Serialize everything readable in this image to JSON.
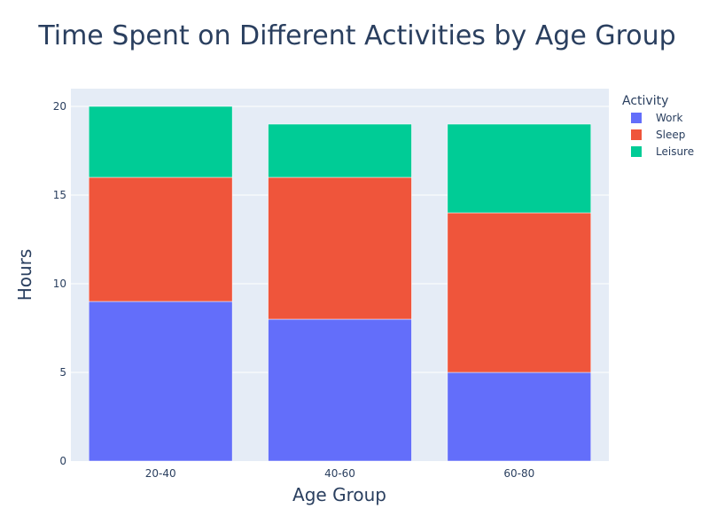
{
  "chart_data": {
    "type": "bar",
    "barmode": "stack",
    "title": "Time Spent on Different Activities by Age Group",
    "xlabel": "Age Group",
    "ylabel": "Hours",
    "categories": [
      "20-40",
      "40-60",
      "60-80"
    ],
    "series": [
      {
        "name": "Work",
        "color": "#636efa",
        "values": [
          9,
          8,
          5
        ]
      },
      {
        "name": "Sleep",
        "color": "#ef553b",
        "values": [
          7,
          8,
          9
        ]
      },
      {
        "name": "Leisure",
        "color": "#00cc96",
        "values": [
          4,
          3,
          5
        ]
      }
    ],
    "ylim": [
      0,
      21
    ],
    "yticks": [
      0,
      5,
      10,
      15,
      20
    ],
    "grid": true,
    "legend": {
      "title": "Activity",
      "placement": "top-right"
    },
    "colors": {
      "plot_background": "#e5ecf6",
      "gridline": "#ffffff",
      "text": "#2a3f5f"
    }
  }
}
